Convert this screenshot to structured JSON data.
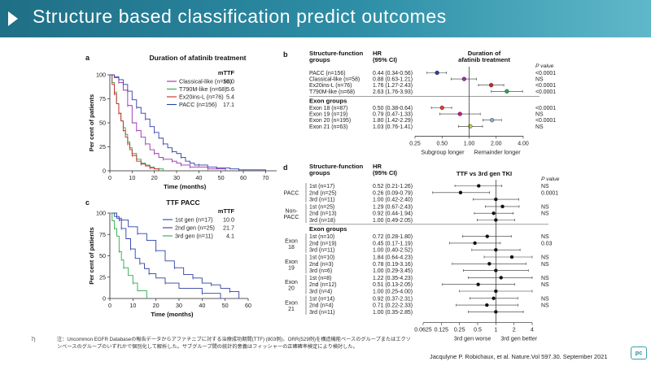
{
  "slide": {
    "title": "Structure based classification predict outcomes",
    "footnote_number": "7)",
    "footnote": "注：Uncommon EGFR Databaseの報告データからアファチニブに対する治療成功期間(TTF) (803例)、ORR(529例)を構造機能ベースのグループまたはエクソンベースのグループのいずれかで個別化して解析した。サブグループ間の統計的意義はフィッシャーの正確確率検定により検討した。",
    "citation": "Jacqulyne P. Robichaux, et al. Nature.Vol 597.30. September 2021",
    "logo": "pc"
  },
  "chart_data": [
    {
      "type": "line",
      "panel": "a",
      "title": "Duration of afatinib treatment",
      "xlabel": "Time (months)",
      "ylabel": "Per cent of patients",
      "xlim": [
        0,
        75
      ],
      "ylim": [
        0,
        100
      ],
      "x_ticks": [
        "0",
        "10",
        "20",
        "30",
        "40",
        "50",
        "60",
        "70"
      ],
      "y_ticks": [
        "0",
        "25",
        "50",
        "75",
        "100"
      ],
      "legend_header": "mTTF",
      "series": [
        {
          "name": "Classical-like (n=58)",
          "value": "10.0",
          "color": "#9b2fae",
          "points": [
            [
              0,
              100
            ],
            [
              2,
              97
            ],
            [
              4,
              92
            ],
            [
              6,
              84
            ],
            [
              8,
              68
            ],
            [
              10,
              50
            ],
            [
              12,
              42
            ],
            [
              14,
              35
            ],
            [
              16,
              28
            ],
            [
              18,
              22
            ],
            [
              20,
              18
            ],
            [
              22,
              14
            ],
            [
              24,
              12
            ],
            [
              26,
              12
            ],
            [
              28,
              10
            ],
            [
              30,
              8
            ],
            [
              32,
              6
            ],
            [
              34,
              6
            ],
            [
              36,
              4
            ],
            [
              40,
              4
            ],
            [
              44,
              2
            ],
            [
              48,
              2
            ],
            [
              52,
              0
            ]
          ]
        },
        {
          "name": "T790M-like (n=68)",
          "value": "5.6",
          "color": "#2aa84a",
          "points": [
            [
              0,
              100
            ],
            [
              1,
              92
            ],
            [
              2,
              82
            ],
            [
              3,
              70
            ],
            [
              4,
              60
            ],
            [
              5,
              52
            ],
            [
              6,
              45
            ],
            [
              7,
              38
            ],
            [
              8,
              30
            ],
            [
              9,
              24
            ],
            [
              10,
              18
            ],
            [
              12,
              12
            ],
            [
              14,
              8
            ],
            [
              16,
              6
            ],
            [
              18,
              4
            ],
            [
              20,
              2
            ],
            [
              22,
              2
            ],
            [
              24,
              0
            ]
          ]
        },
        {
          "name": "Ex20ins-L (n=76)",
          "value": "5.4",
          "color": "#c62828",
          "points": [
            [
              0,
              100
            ],
            [
              1,
              90
            ],
            [
              2,
              80
            ],
            [
              3,
              70
            ],
            [
              4,
              60
            ],
            [
              5,
              52
            ],
            [
              6,
              42
            ],
            [
              7,
              35
            ],
            [
              8,
              28
            ],
            [
              9,
              22
            ],
            [
              10,
              16
            ],
            [
              12,
              10
            ],
            [
              14,
              7
            ],
            [
              16,
              5
            ],
            [
              18,
              3
            ],
            [
              20,
              2
            ],
            [
              22,
              0
            ]
          ]
        },
        {
          "name": "PACC (n=156)",
          "value": "17.1",
          "color": "#2d3fa8",
          "points": [
            [
              0,
              100
            ],
            [
              2,
              98
            ],
            [
              4,
              95
            ],
            [
              6,
              90
            ],
            [
              8,
              83
            ],
            [
              10,
              74
            ],
            [
              12,
              66
            ],
            [
              14,
              60
            ],
            [
              16,
              54
            ],
            [
              18,
              46
            ],
            [
              20,
              40
            ],
            [
              22,
              34
            ],
            [
              24,
              28
            ],
            [
              26,
              24
            ],
            [
              28,
              20
            ],
            [
              30,
              18
            ],
            [
              32,
              14
            ],
            [
              34,
              10
            ],
            [
              36,
              8
            ],
            [
              38,
              6
            ],
            [
              40,
              6
            ],
            [
              44,
              4
            ],
            [
              48,
              3
            ],
            [
              54,
              2
            ],
            [
              58,
              1
            ],
            [
              62,
              1
            ],
            [
              70,
              0
            ]
          ]
        }
      ]
    },
    {
      "type": "line",
      "panel": "c",
      "title": "TTF PACC",
      "xlabel": "Time (months)",
      "ylabel": "Per cent of patients",
      "xlim": [
        0,
        60
      ],
      "ylim": [
        0,
        100
      ],
      "x_ticks": [
        "0",
        "10",
        "20",
        "30",
        "40",
        "50",
        "60"
      ],
      "y_ticks": [
        "0",
        "25",
        "50",
        "75",
        "100"
      ],
      "legend_header": "mTTF",
      "series": [
        {
          "name": "1st gen (n=17)",
          "value": "10.0",
          "color": "#2d3fa8",
          "points": [
            [
              0,
              100
            ],
            [
              3,
              94
            ],
            [
              5,
              82
            ],
            [
              7,
              70
            ],
            [
              9,
              58
            ],
            [
              11,
              47
            ],
            [
              13,
              41
            ],
            [
              15,
              35
            ],
            [
              17,
              29
            ],
            [
              20,
              24
            ],
            [
              24,
              18
            ],
            [
              30,
              12
            ],
            [
              40,
              6
            ],
            [
              46,
              6
            ],
            [
              48,
              0
            ]
          ]
        },
        {
          "name": "2nd gen (n=25)",
          "value": "21.7",
          "color": "#2d3fa8",
          "points": [
            [
              0,
              100
            ],
            [
              2,
              96
            ],
            [
              4,
              92
            ],
            [
              8,
              84
            ],
            [
              12,
              76
            ],
            [
              16,
              68
            ],
            [
              20,
              56
            ],
            [
              24,
              44
            ],
            [
              28,
              36
            ],
            [
              32,
              28
            ],
            [
              36,
              24
            ],
            [
              40,
              18
            ],
            [
              44,
              16
            ],
            [
              48,
              12
            ],
            [
              52,
              8
            ],
            [
              56,
              0
            ]
          ]
        },
        {
          "name": "3rd gen (n=11)",
          "value": "4.1",
          "color": "#2aa84a",
          "points": [
            [
              0,
              100
            ],
            [
              1,
              91
            ],
            [
              2,
              82
            ],
            [
              3,
              73
            ],
            [
              4,
              55
            ],
            [
              5,
              45
            ],
            [
              6,
              36
            ],
            [
              8,
              27
            ],
            [
              10,
              18
            ],
            [
              12,
              9
            ],
            [
              16,
              0
            ]
          ]
        }
      ]
    },
    {
      "type": "forest",
      "panel": "b",
      "col_groups": "Structure-function groups",
      "col_hr": "HR (95% CI)",
      "title": "Duration of afatinib treatment",
      "pvalue_header": "P value",
      "scale": "log",
      "xlim": [
        0.25,
        4.0
      ],
      "x_ticks": [
        0.25,
        0.5,
        1.0,
        2.0,
        4.0
      ],
      "x_tick_labels": [
        "0.25",
        "0.50",
        "1.00",
        "2.00",
        "4.00"
      ],
      "left_label": "Subgroup longer",
      "right_label": "Remainder longer",
      "sections": [
        {
          "heading": null,
          "rows": [
            {
              "label": "PACC (n=156)",
              "hr_text": "0.44 (0.34-0.56)",
              "hr": 0.44,
              "lo": 0.34,
              "hi": 0.56,
              "p": "<0.0001",
              "color": "#2d3fa8"
            },
            {
              "label": "Classical-like (n=58)",
              "hr_text": "0.88 (0.63-1.21)",
              "hr": 0.88,
              "lo": 0.63,
              "hi": 1.21,
              "p": "NS",
              "color": "#9b2fae"
            },
            {
              "label": "Ex20ins-L (n=76)",
              "hr_text": "1.76 (1.27-2.43)",
              "hr": 1.76,
              "lo": 1.27,
              "hi": 2.43,
              "p": "<0.0001",
              "color": "#c62828"
            },
            {
              "label": "T790M-like (n=68)",
              "hr_text": "2.63 (1.76-3.93)",
              "hr": 2.63,
              "lo": 1.76,
              "hi": 3.93,
              "p": "<0.0001",
              "color": "#2aa84a"
            }
          ]
        },
        {
          "heading": "Exon groups",
          "rows": [
            {
              "label": "Exon 18 (n=87)",
              "hr_text": "0.50 (0.38-0.64)",
              "hr": 0.5,
              "lo": 0.38,
              "hi": 0.64,
              "p": "<0.0001",
              "color": "#e53935"
            },
            {
              "label": "Exon 19 (n=19)",
              "hr_text": "0.79 (0.47-1.33)",
              "hr": 0.79,
              "lo": 0.47,
              "hi": 1.33,
              "p": "NS",
              "color": "#c2188b"
            },
            {
              "label": "Exon 20 (n=195)",
              "hr_text": "1.80 (1.42-2.29)",
              "hr": 1.8,
              "lo": 1.42,
              "hi": 2.29,
              "p": "<0.0001",
              "color": "#7ab3e0"
            },
            {
              "label": "Exon 21 (n=63)",
              "hr_text": "1.03 (0.76-1.41)",
              "hr": 1.03,
              "lo": 0.76,
              "hi": 1.41,
              "p": "NS",
              "color": "#c8cf3a"
            }
          ]
        }
      ]
    },
    {
      "type": "forest",
      "panel": "d",
      "col_groups": "Structure-function groups",
      "col_hr": "HR (95% CI)",
      "title": "TTF vs 3rd gen TKI",
      "pvalue_header": "P value",
      "scale": "log",
      "xlim": [
        0.0625,
        4
      ],
      "x_ticks": [
        0.0625,
        0.125,
        0.25,
        0.5,
        1,
        2,
        4
      ],
      "x_tick_labels": [
        "0.0625",
        "0.125",
        "0.25",
        "0.5",
        "1",
        "2",
        "4"
      ],
      "left_label": "3rd gen worse",
      "right_label": "3rd gen better",
      "sections": [
        {
          "heading": null,
          "groups": [
            {
              "group": "PACC",
              "rows": [
                {
                  "label": "1st (n=17)",
                  "hr_text": "0.52 (0.21-1.26)",
                  "hr": 0.52,
                  "lo": 0.21,
                  "hi": 1.26,
                  "p": "NS"
                },
                {
                  "label": "2nd (n=25)",
                  "hr_text": "0.26 (0.09-0.79)",
                  "hr": 0.26,
                  "lo": 0.09,
                  "hi": 0.79,
                  "p": "0.0001"
                },
                {
                  "label": "3rd (n=11)",
                  "hr_text": "1.00 (0.42-2.40)",
                  "hr": 1.0,
                  "lo": 0.42,
                  "hi": 2.4,
                  "p": ""
                }
              ]
            },
            {
              "group": "Non-\nPACC",
              "rows": [
                {
                  "label": "1st (n=25)",
                  "hr_text": "1.29 (0.67-2.43)",
                  "hr": 1.29,
                  "lo": 0.67,
                  "hi": 2.43,
                  "p": "NS"
                },
                {
                  "label": "2nd (n=13)",
                  "hr_text": "0.92 (0.44-1.94)",
                  "hr": 0.92,
                  "lo": 0.44,
                  "hi": 1.94,
                  "p": "NS"
                },
                {
                  "label": "3rd (n=18)",
                  "hr_text": "1.00 (0.49-2.05)",
                  "hr": 1.0,
                  "lo": 0.49,
                  "hi": 2.05,
                  "p": ""
                }
              ]
            }
          ]
        },
        {
          "heading": "Exon groups",
          "groups": [
            {
              "group": "Exon\n18",
              "rows": [
                {
                  "label": "1st (n=10)",
                  "hr_text": "0.72 (0.28-1.80)",
                  "hr": 0.72,
                  "lo": 0.28,
                  "hi": 1.8,
                  "p": "NS"
                },
                {
                  "label": "2nd (n=19)",
                  "hr_text": "0.45 (0.17-1.19)",
                  "hr": 0.45,
                  "lo": 0.17,
                  "hi": 1.19,
                  "p": "0.03"
                },
                {
                  "label": "3rd (n=11)",
                  "hr_text": "1.00 (0.40-2.52)",
                  "hr": 1.0,
                  "lo": 0.4,
                  "hi": 2.52,
                  "p": ""
                }
              ]
            },
            {
              "group": "Exon\n19",
              "rows": [
                {
                  "label": "1st (n=10)",
                  "hr_text": "1.84 (0.64-4.23)",
                  "hr": 1.84,
                  "lo": 0.64,
                  "hi": 4.23,
                  "p": "NS"
                },
                {
                  "label": "2nd (n=3)",
                  "hr_text": "0.78 (0.19-3.16)",
                  "hr": 0.78,
                  "lo": 0.19,
                  "hi": 3.16,
                  "p": "NS"
                },
                {
                  "label": "3rd (n=6)",
                  "hr_text": "1.00 (0.29-3.45)",
                  "hr": 1.0,
                  "lo": 0.29,
                  "hi": 3.45,
                  "p": ""
                }
              ]
            },
            {
              "group": "Exon\n20",
              "rows": [
                {
                  "label": "1st (n=8)",
                  "hr_text": "1.22 (0.35-4.23)",
                  "hr": 1.22,
                  "lo": 0.35,
                  "hi": 4.23,
                  "p": "NS"
                },
                {
                  "label": "2nd (n=12)",
                  "hr_text": "0.51 (0.13-2.05)",
                  "hr": 0.51,
                  "lo": 0.13,
                  "hi": 2.05,
                  "p": "NS"
                },
                {
                  "label": "3rd (n=4)",
                  "hr_text": "1.00 (0.25-4.00)",
                  "hr": 1.0,
                  "lo": 0.25,
                  "hi": 4.0,
                  "p": ""
                }
              ]
            },
            {
              "group": "Exon\n21",
              "rows": [
                {
                  "label": "1st (n=14)",
                  "hr_text": "0.92 (0.37-2.31)",
                  "hr": 0.92,
                  "lo": 0.37,
                  "hi": 2.31,
                  "p": "NS"
                },
                {
                  "label": "2nd (n=4)",
                  "hr_text": "0.71 (0.22-2.33)",
                  "hr": 0.71,
                  "lo": 0.22,
                  "hi": 2.33,
                  "p": "NS"
                },
                {
                  "label": "3rd (n=11)",
                  "hr_text": "1.00 (0.35-2.85)",
                  "hr": 1.0,
                  "lo": 0.35,
                  "hi": 2.85,
                  "p": ""
                }
              ]
            }
          ]
        }
      ]
    }
  ]
}
